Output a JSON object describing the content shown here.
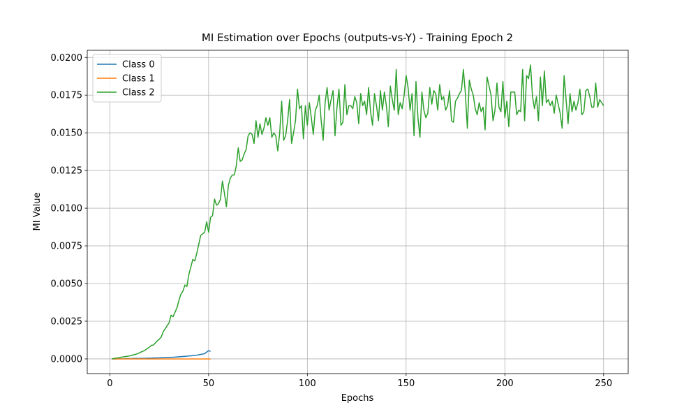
{
  "chart_data": {
    "type": "line",
    "title": "MI Estimation over Epochs (outputs-vs-Y) - Training Epoch 2",
    "x_label": "Epochs",
    "y_label": "MI Value",
    "xlim": [
      -11.45,
      262.45
    ],
    "ylim": [
      -0.000975,
      0.020475
    ],
    "xticks": [
      0,
      50,
      100,
      150,
      200,
      250
    ],
    "yticks": [
      {
        "value": 0,
        "label": "0.0000"
      },
      {
        "value": 0.0025,
        "label": "0.0025"
      },
      {
        "value": 0.005,
        "label": "0.0050"
      },
      {
        "value": 0.0075,
        "label": "0.0075"
      },
      {
        "value": 0.01,
        "label": "0.0100"
      },
      {
        "value": 0.0125,
        "label": "0.0125"
      },
      {
        "value": 0.015,
        "label": "0.0150"
      },
      {
        "value": 0.0175,
        "label": "0.0175"
      },
      {
        "value": 0.02,
        "label": "0.0200"
      }
    ],
    "grid": true,
    "legend": "upper-left",
    "series": [
      {
        "name": "Class 0",
        "color": "#1f77b4",
        "x": [
          1,
          2,
          3,
          4,
          5,
          6,
          7,
          8,
          9,
          10,
          11,
          12,
          13,
          14,
          15,
          16,
          17,
          18,
          19,
          20,
          21,
          22,
          23,
          24,
          25,
          26,
          27,
          28,
          29,
          30,
          31,
          32,
          33,
          34,
          35,
          36,
          37,
          38,
          39,
          40,
          41,
          42,
          43,
          44,
          45,
          46,
          47,
          48,
          49,
          50,
          51
        ],
        "values": [
          0,
          0,
          0,
          1e-05,
          1e-05,
          1e-05,
          1e-05,
          2e-05,
          2e-05,
          2e-05,
          2e-05,
          3e-05,
          3e-05,
          3e-05,
          3e-05,
          4e-05,
          4e-05,
          4e-05,
          5e-05,
          5e-05,
          5e-05,
          6e-05,
          6e-05,
          7e-05,
          7e-05,
          8e-05,
          8e-05,
          9e-05,
          0.0001,
          0.0001,
          0.00011,
          0.00011,
          0.00012,
          0.00013,
          0.00014,
          0.00015,
          0.00016,
          0.00017,
          0.00018,
          0.0002,
          0.0002,
          0.00022,
          0.00023,
          0.00025,
          0.00027,
          0.0003,
          0.00032,
          0.00035,
          0.00045,
          0.00055,
          0.0005
        ]
      },
      {
        "name": "Class 1",
        "color": "#ff7f0e",
        "x": [
          1,
          2,
          3,
          4,
          5,
          6,
          7,
          8,
          9,
          10,
          11,
          12,
          13,
          14,
          15,
          16,
          17,
          18,
          19,
          20,
          21,
          22,
          23,
          24,
          25,
          26,
          27,
          28,
          29,
          30,
          31,
          32,
          33,
          34,
          35,
          36,
          37,
          38,
          39,
          40,
          41,
          42,
          43,
          44,
          45,
          46,
          47,
          48,
          49,
          50,
          51
        ],
        "values": [
          0,
          0,
          0,
          0,
          0,
          0,
          0,
          0,
          0,
          0,
          0,
          0,
          0,
          0,
          0,
          0,
          0,
          0,
          0,
          0,
          0,
          0,
          0,
          0,
          0,
          0,
          0,
          0,
          0,
          0,
          0,
          0,
          0,
          0,
          0,
          0,
          0,
          0,
          0,
          0,
          0,
          0,
          0,
          0,
          0,
          0,
          0,
          0,
          0,
          0,
          0
        ]
      },
      {
        "name": "Class 2",
        "color": "#2ca02c",
        "x": [
          1,
          2,
          3,
          4,
          5,
          6,
          7,
          8,
          9,
          10,
          11,
          12,
          13,
          14,
          15,
          16,
          17,
          18,
          19,
          20,
          21,
          22,
          23,
          24,
          25,
          26,
          27,
          28,
          29,
          30,
          31,
          32,
          33,
          34,
          35,
          36,
          37,
          38,
          39,
          40,
          41,
          42,
          43,
          44,
          45,
          46,
          47,
          48,
          49,
          50,
          51,
          52,
          53,
          54,
          55,
          56,
          57,
          58,
          59,
          60,
          61,
          62,
          63,
          64,
          65,
          66,
          67,
          68,
          69,
          70,
          71,
          72,
          73,
          74,
          75,
          76,
          77,
          78,
          79,
          80,
          81,
          82,
          83,
          84,
          85,
          86,
          87,
          88,
          89,
          90,
          91,
          92,
          93,
          94,
          95,
          96,
          97,
          98,
          99,
          100,
          101,
          102,
          103,
          104,
          105,
          106,
          107,
          108,
          109,
          110,
          111,
          112,
          113,
          114,
          115,
          116,
          117,
          118,
          119,
          120,
          121,
          122,
          123,
          124,
          125,
          126,
          127,
          128,
          129,
          130,
          131,
          132,
          133,
          134,
          135,
          136,
          137,
          138,
          139,
          140,
          141,
          142,
          143,
          144,
          145,
          146,
          147,
          148,
          149,
          150,
          151,
          152,
          153,
          154,
          155,
          156,
          157,
          158,
          159,
          160,
          161,
          162,
          163,
          164,
          165,
          166,
          167,
          168,
          169,
          170,
          171,
          172,
          173,
          174,
          175,
          176,
          177,
          178,
          179,
          180,
          181,
          182,
          183,
          184,
          185,
          186,
          187,
          188,
          189,
          190,
          191,
          192,
          193,
          194,
          195,
          196,
          197,
          198,
          199,
          200,
          201,
          202,
          203,
          204,
          205,
          206,
          207,
          208,
          209,
          210,
          211,
          212,
          213,
          214,
          215,
          216,
          217,
          218,
          219,
          220,
          221,
          222,
          223,
          224,
          225,
          226,
          227,
          228,
          229,
          230,
          231,
          232,
          233,
          234,
          235,
          236,
          237,
          238,
          239,
          240,
          241,
          242,
          243,
          244,
          245,
          246,
          247,
          248,
          249,
          250
        ],
        "values": [
          0,
          3e-05,
          5e-05,
          7e-05,
          0.0001,
          0.00012,
          0.00014,
          0.00016,
          0.00018,
          0.0002,
          0.00023,
          0.00027,
          0.0003,
          0.00035,
          0.0004,
          0.00047,
          0.00052,
          0.0006,
          0.00068,
          0.00078,
          0.0009,
          0.00092,
          0.00105,
          0.0012,
          0.0013,
          0.00145,
          0.0018,
          0.002,
          0.0022,
          0.0024,
          0.0029,
          0.0028,
          0.0031,
          0.0034,
          0.0039,
          0.0043,
          0.0045,
          0.0049,
          0.0048,
          0.0056,
          0.0061,
          0.0066,
          0.0065,
          0.007,
          0.0076,
          0.0082,
          0.0083,
          0.0084,
          0.0091,
          0.0084,
          0.0094,
          0.0095,
          0.0106,
          0.0102,
          0.0103,
          0.0106,
          0.0118,
          0.011,
          0.0101,
          0.0115,
          0.012,
          0.0122,
          0.0122,
          0.0128,
          0.014,
          0.0131,
          0.0132,
          0.0136,
          0.0139,
          0.0148,
          0.015,
          0.0149,
          0.0143,
          0.0158,
          0.0147,
          0.0156,
          0.0149,
          0.0153,
          0.016,
          0.0155,
          0.016,
          0.0147,
          0.015,
          0.0148,
          0.0138,
          0.015,
          0.0171,
          0.0145,
          0.0148,
          0.0158,
          0.0172,
          0.0143,
          0.015,
          0.0158,
          0.0179,
          0.0166,
          0.0168,
          0.0146,
          0.0168,
          0.0155,
          0.017,
          0.016,
          0.0149,
          0.0165,
          0.0168,
          0.0175,
          0.0158,
          0.0145,
          0.017,
          0.018,
          0.0165,
          0.0172,
          0.0178,
          0.0148,
          0.0167,
          0.0179,
          0.0155,
          0.0157,
          0.0182,
          0.0162,
          0.0168,
          0.0168,
          0.0166,
          0.0174,
          0.017,
          0.0156,
          0.0176,
          0.0168,
          0.0171,
          0.0162,
          0.018,
          0.0164,
          0.0155,
          0.0176,
          0.0168,
          0.0158,
          0.0178,
          0.0165,
          0.0177,
          0.0168,
          0.0154,
          0.0181,
          0.0172,
          0.0165,
          0.0192,
          0.0162,
          0.017,
          0.0166,
          0.0175,
          0.0188,
          0.018,
          0.0165,
          0.0176,
          0.0148,
          0.0184,
          0.016,
          0.0147,
          0.0177,
          0.0165,
          0.016,
          0.0163,
          0.018,
          0.0169,
          0.0178,
          0.0176,
          0.0165,
          0.0182,
          0.0172,
          0.0174,
          0.0165,
          0.0168,
          0.0178,
          0.0158,
          0.0157,
          0.0171,
          0.0173,
          0.0176,
          0.0178,
          0.0192,
          0.0176,
          0.0153,
          0.0185,
          0.0179,
          0.0175,
          0.0166,
          0.0162,
          0.017,
          0.0164,
          0.0167,
          0.0152,
          0.0187,
          0.0181,
          0.0175,
          0.0158,
          0.0165,
          0.0183,
          0.0167,
          0.0164,
          0.0184,
          0.016,
          0.0171,
          0.0154,
          0.0177,
          0.0177,
          0.0177,
          0.0162,
          0.0165,
          0.0164,
          0.0192,
          0.0158,
          0.0188,
          0.0186,
          0.0195,
          0.0174,
          0.0166,
          0.0174,
          0.0158,
          0.0187,
          0.0168,
          0.0191,
          0.017,
          0.0172,
          0.0168,
          0.0171,
          0.0163,
          0.0175,
          0.0169,
          0.0163,
          0.0153,
          0.0188,
          0.0172,
          0.0156,
          0.0176,
          0.0164,
          0.0171,
          0.0165,
          0.017,
          0.0179,
          0.0162,
          0.0164,
          0.0178,
          0.0179,
          0.0174,
          0.0167,
          0.0167,
          0.0183,
          0.0167,
          0.0172,
          0.017,
          0.0168
        ]
      }
    ]
  }
}
